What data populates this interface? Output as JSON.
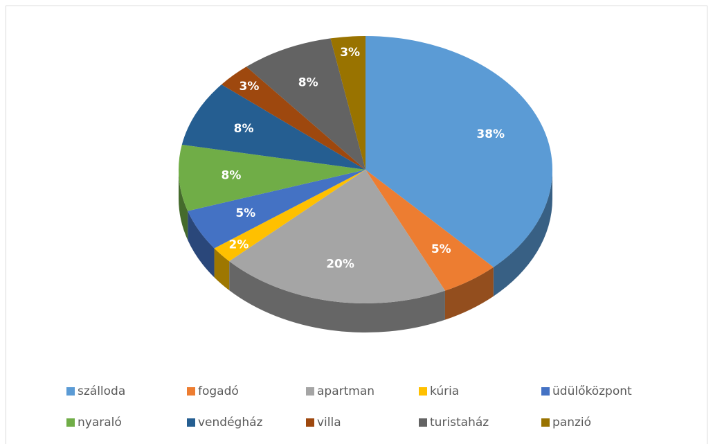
{
  "chart_data": {
    "type": "pie",
    "categories": [
      "szálloda",
      "fogadó",
      "apartman",
      "kúria",
      "üdülőközpont",
      "nyaraló",
      "vendégház",
      "villa",
      "turistaház",
      "panzió"
    ],
    "values": [
      38,
      5,
      20,
      2,
      5,
      8,
      8,
      3,
      8,
      3
    ],
    "value_labels": [
      "38%",
      "5%",
      "20%",
      "2%",
      "5%",
      "8%",
      "8%",
      "3%",
      "8%",
      "3%"
    ],
    "colors": [
      "#5b9bd5",
      "#ed7d31",
      "#a5a5a5",
      "#ffc000",
      "#4472c4",
      "#70ad47",
      "#255e91",
      "#9e480e",
      "#636363",
      "#997300"
    ],
    "legend": "bottom"
  }
}
